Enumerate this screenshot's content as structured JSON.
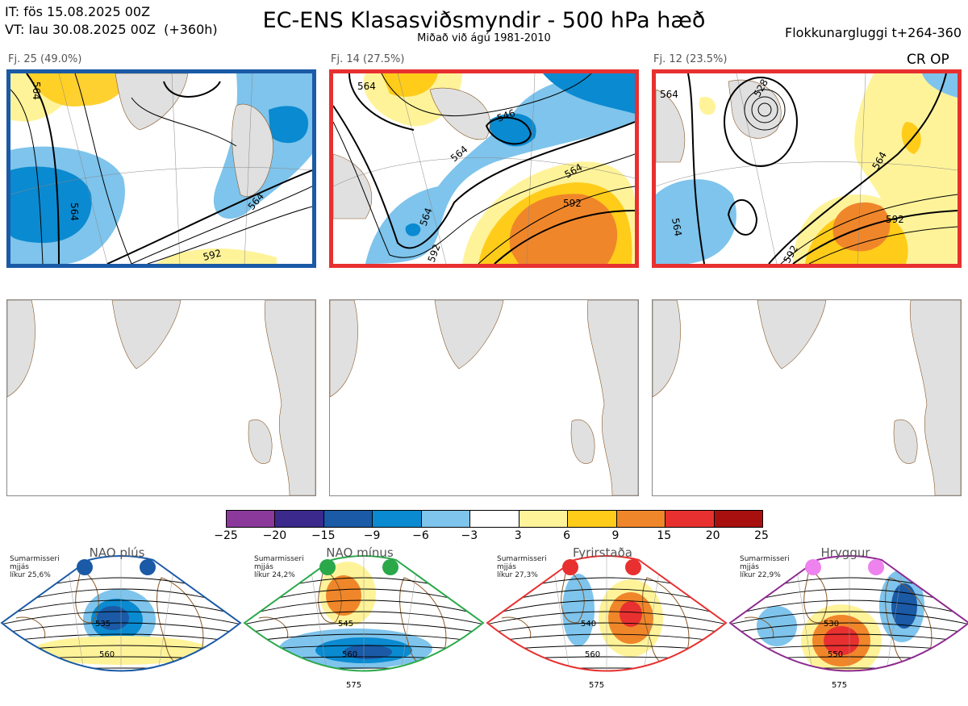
{
  "header": {
    "it_line": "IT: fös 15.08.2025 00Z",
    "vt_line": "VT: lau 30.08.2025 00Z  (+360h)",
    "title": "EC-ENS Klasasviðsmyndir - 500 hPa hæð",
    "subtitle": "Miðað við ágú 1981-2010",
    "window": "Flokkunargluggi t+264-360"
  },
  "clusters": [
    {
      "label": "Fj. 25 (49.0%)",
      "members": 25,
      "percent": 49.0,
      "regime": "NAO plús",
      "frame_color": "#1a5aa6",
      "contour_labels": [
        "564",
        "564",
        "564",
        "592"
      ],
      "op_label": ""
    },
    {
      "label": "Fj. 14 (27.5%)",
      "members": 14,
      "percent": 27.5,
      "regime": "Fyrirstaða",
      "frame_color": "#e83030",
      "contour_labels": [
        "546",
        "564",
        "564",
        "564",
        "592",
        "592",
        "564"
      ],
      "op_label": ""
    },
    {
      "label": "Fj. 12 (23.5%)",
      "members": 12,
      "percent": 23.5,
      "regime": "Fyrirstaða",
      "frame_color": "#e83030",
      "contour_labels": [
        "564",
        "528",
        "564",
        "564",
        "592",
        "592"
      ],
      "op_label": "CR OP"
    }
  ],
  "colorbar": {
    "ticks": [
      "−25",
      "−20",
      "−15",
      "−9",
      "−6",
      "−3",
      "3",
      "6",
      "9",
      "15",
      "20",
      "25"
    ],
    "colors": [
      "#8b3a9b",
      "#3b2a8c",
      "#1a5aa6",
      "#0a8ad0",
      "#7ec4ec",
      "#ffffff",
      "#fff39a",
      "#ffcc1a",
      "#f0862a",
      "#e83030",
      "#a81010"
    ]
  },
  "regimes": [
    {
      "name": "NAO plús",
      "info": "Sumarmisseri\nmjjás\nlíkur 25,6%",
      "probability": 25.6,
      "color": "#1a5aa6",
      "dot_color": "#1a5aa6",
      "labels": [
        "535",
        "560"
      ]
    },
    {
      "name": "NAO mínus",
      "info": "Sumarmisseri\nmjjás\nlíkur 24,2%",
      "probability": 24.2,
      "color": "#2aa84a",
      "dot_color": "#2aa84a",
      "labels": [
        "545",
        "560",
        "575"
      ]
    },
    {
      "name": "Fyrirstaða",
      "info": "Sumarmisseri\nmjjás\nlíkur 27,3%",
      "probability": 27.3,
      "color": "#e83030",
      "dot_color": "#e83030",
      "labels": [
        "540",
        "560",
        "575"
      ]
    },
    {
      "name": "Hryggur",
      "info": "Sumarmisseri\nmjjás\nlíkur 22,9%",
      "probability": 22.9,
      "color": "#8e2a90",
      "dot_color": "#ee82ee",
      "labels": [
        "530",
        "550",
        "575"
      ]
    }
  ]
}
